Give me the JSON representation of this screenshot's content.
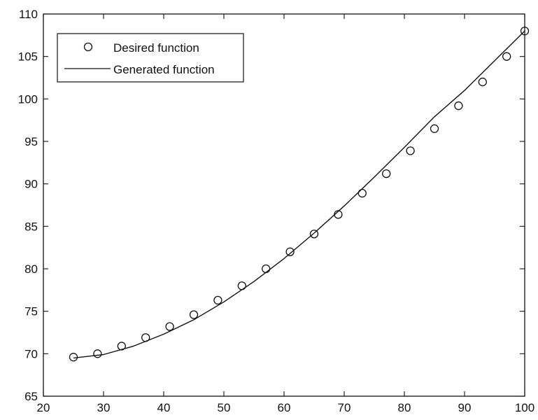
{
  "chart_data": {
    "type": "line",
    "title": "",
    "xlabel": "",
    "ylabel": "",
    "xlim": [
      20,
      100
    ],
    "ylim": [
      65,
      110
    ],
    "xticks": [
      20,
      30,
      40,
      50,
      60,
      70,
      80,
      90,
      100
    ],
    "yticks": [
      65,
      70,
      75,
      80,
      85,
      90,
      95,
      100,
      105,
      110
    ],
    "xtick_labels": [
      "20",
      "30",
      "40",
      "50",
      "60",
      "70",
      "80",
      "90",
      "100"
    ],
    "ytick_labels": [
      "65",
      "70",
      "75",
      "80",
      "85",
      "90",
      "95",
      "100",
      "105",
      "110"
    ],
    "grid": false,
    "legend_position": "top-left",
    "legend": [
      "Desired function",
      "Generated function"
    ],
    "series": [
      {
        "name": "Desired function",
        "style": "markers-circle",
        "color": "#111111",
        "x": [
          25,
          29,
          33,
          37,
          41,
          45,
          49,
          53,
          57,
          61,
          65,
          69,
          73,
          77,
          81,
          85,
          89,
          93,
          97,
          100
        ],
        "y": [
          69.6,
          70.0,
          70.9,
          71.9,
          73.2,
          74.6,
          76.3,
          78.0,
          80.0,
          82.0,
          84.1,
          86.4,
          88.9,
          91.2,
          93.9,
          96.5,
          99.2,
          102.0,
          105.0,
          108.0
        ]
      },
      {
        "name": "Generated function",
        "style": "solid-line",
        "color": "#111111",
        "x": [
          25,
          30,
          35,
          40,
          45,
          50,
          55,
          60,
          65,
          70,
          75,
          80,
          85,
          90,
          95,
          100
        ],
        "y": [
          69.5,
          69.9,
          70.9,
          72.3,
          74.0,
          76.1,
          78.5,
          81.2,
          84.2,
          87.4,
          90.8,
          94.3,
          97.9,
          101.0,
          104.5,
          108.0
        ]
      }
    ]
  }
}
